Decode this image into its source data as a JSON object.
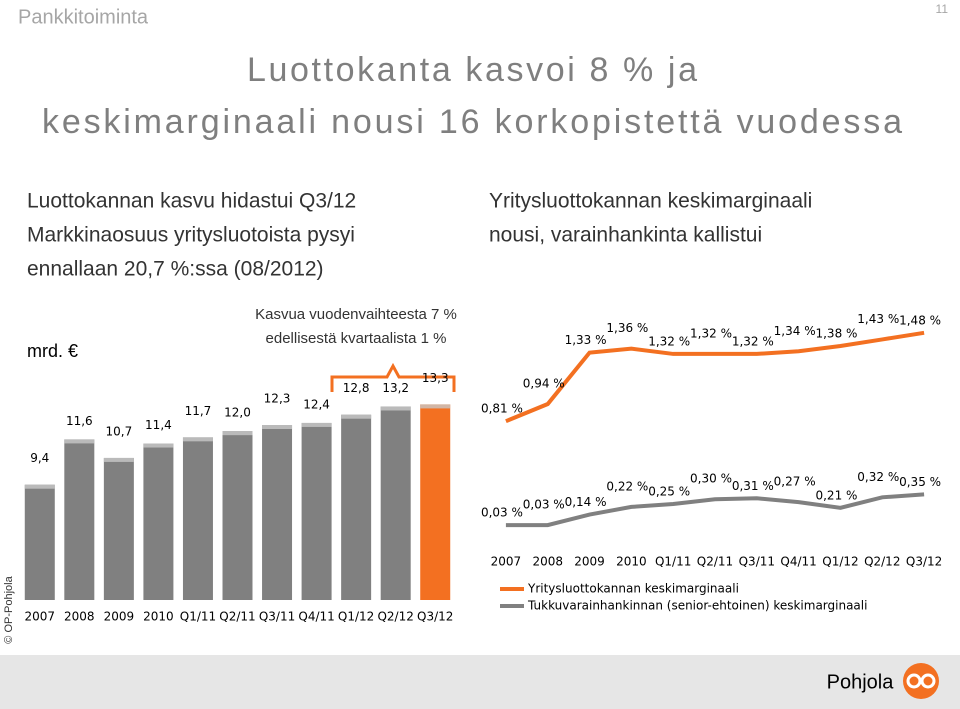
{
  "header": "Pankkitoiminta",
  "page_number": "11",
  "title": [
    "Luottokanta kasvoi 8 % ja",
    "keskimarginaali nousi 16 korkopistettä vuodessa"
  ],
  "left_text": [
    "Luottokannan kasvu hidastui Q3/12",
    "Markkinaosuus yritysluotoista pysyi",
    "ennallaan 20,7 %:ssa (08/2012)"
  ],
  "right_text": [
    "Yritysluottokannan keskimarginaali",
    "nousi, varainhankinta kallistui"
  ],
  "copyright": "© OP-Pohjola",
  "logo": "Pohjola",
  "chart_data": [
    {
      "type": "bar",
      "unit_label": "mrd. €",
      "annotation": [
        "Kasvua vuodenvaihteesta 7 %",
        "edellisestä kvartaalista 1 %"
      ],
      "categories": [
        "2007",
        "2008",
        "2009",
        "2010",
        "Q1/11",
        "Q2/11",
        "Q3/11",
        "Q4/11",
        "Q1/12",
        "Q2/12",
        "Q3/12"
      ],
      "values": [
        9.4,
        11.6,
        10.7,
        11.4,
        11.7,
        12.0,
        12.3,
        12.4,
        12.8,
        13.2,
        13.3
      ],
      "value_labels": [
        "9,4",
        "11,6",
        "10,7",
        "11,4",
        "11,7",
        "12,0",
        "12,3",
        "12,4",
        "12,8",
        "13,2",
        "13,3"
      ],
      "colors": [
        "#808080",
        "#808080",
        "#808080",
        "#808080",
        "#808080",
        "#808080",
        "#808080",
        "#808080",
        "#808080",
        "#808080",
        "#f37021"
      ],
      "ylim": [
        3.8,
        14
      ]
    },
    {
      "type": "line",
      "categories": [
        "2007",
        "2008",
        "2009",
        "2010",
        "Q1/11",
        "Q2/11",
        "Q3/11",
        "Q4/11",
        "Q1/12",
        "Q2/12",
        "Q3/12"
      ],
      "ylim": [
        0,
        1.6
      ],
      "y2lim": [
        0,
        2.2
      ],
      "series": [
        {
          "name": "Yritysluottokannan keskimarginaali",
          "color": "#f37021",
          "values": [
            0.81,
            0.94,
            1.33,
            1.36,
            1.32,
            1.32,
            1.32,
            1.34,
            1.38,
            1.43,
            1.48
          ],
          "value_labels": [
            "0,81 %",
            "0,94 %",
            "1,33 %",
            "1,36 %",
            "1,32 %",
            "1,32 %",
            "1,32 %",
            "1,34 %",
            "1,38 %",
            "1,43 %",
            "1,48 %"
          ]
        },
        {
          "name": "Tukkuvarainhankinnan (senior-ehtoinen) keskimarginaali",
          "color": "#808080",
          "axis": "y2",
          "values": [
            0.03,
            0.03,
            0.14,
            0.22,
            0.25,
            0.3,
            0.31,
            0.27,
            0.21,
            0.32,
            0.35
          ],
          "value_labels": [
            "0,03 %",
            "0,03 %",
            "0,14 %",
            "0,22 %",
            "0,25 %",
            "0,30 %",
            "0,31 %",
            "0,27 %",
            "0,21 %",
            "0,32 %",
            "0,35 %"
          ]
        }
      ]
    }
  ]
}
